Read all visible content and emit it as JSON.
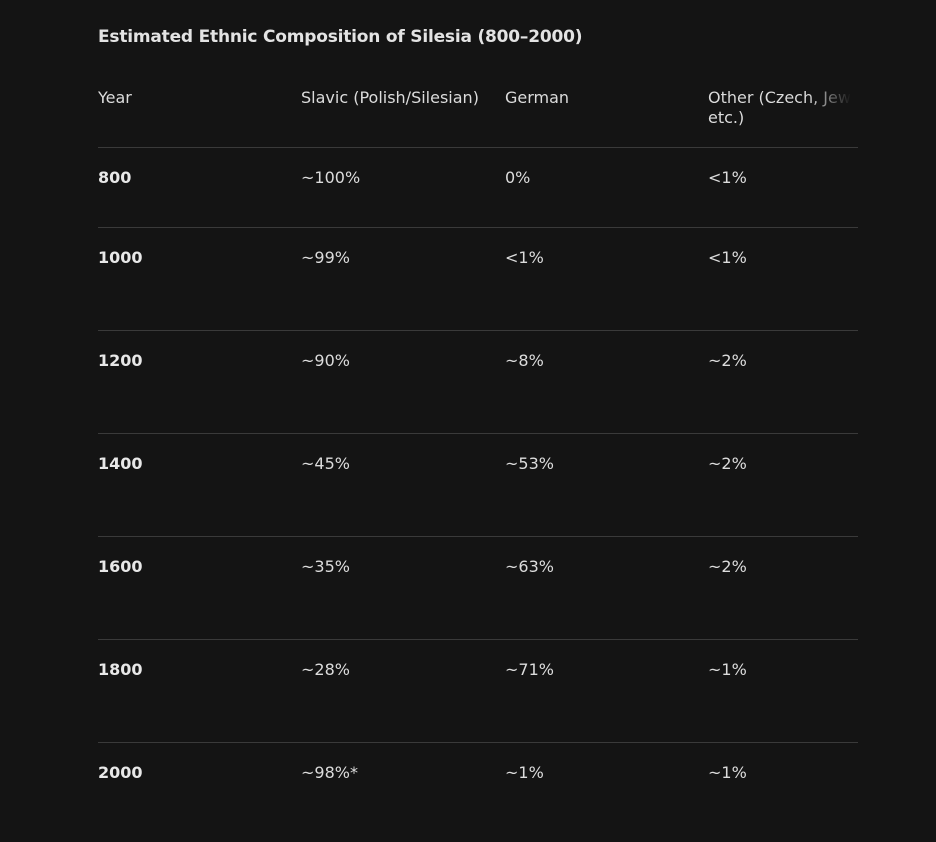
{
  "title": "Estimated Ethnic Composition of Silesia (800–2000)",
  "table": {
    "headers": [
      "Year",
      "Slavic (Polish/Silesian)",
      "German",
      "Other (Czech, Jews, etc.)"
    ],
    "header_other_line1": "Other (Czech, Jew",
    "header_other_line2": "etc.)",
    "rows": [
      [
        "800",
        "~100%",
        "0%",
        "<1%"
      ],
      [
        "1000",
        "~99%",
        "<1%",
        "<1%"
      ],
      [
        "1200",
        "~90%",
        "~8%",
        "~2%"
      ],
      [
        "1400",
        "~45%",
        "~53%",
        "~2%"
      ],
      [
        "1600",
        "~35%",
        "~63%",
        "~2%"
      ],
      [
        "1800",
        "~28%",
        "~71%",
        "~1%"
      ],
      [
        "2000",
        "~98%*",
        "~1%",
        "~1%"
      ]
    ]
  },
  "colors": {
    "background": "#141414",
    "text": "#dcdcdc",
    "divider": "#3a3a3a"
  }
}
